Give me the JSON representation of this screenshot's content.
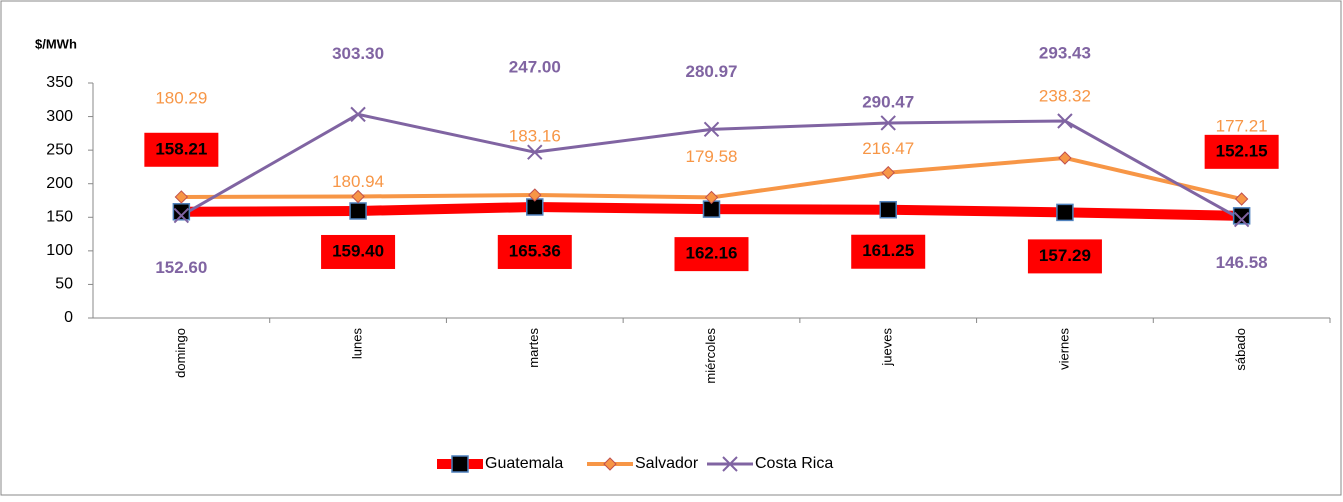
{
  "chart_data": {
    "type": "line",
    "y_label": "$/MWh",
    "categories": [
      "domingo",
      "lunes",
      "martes",
      "miércoles",
      "jueves",
      "viernes",
      "sábado"
    ],
    "series": [
      {
        "name": "Guatemala",
        "color": "#ff0000",
        "marker": "square",
        "values": [
          158.21,
          159.4,
          165.36,
          162.16,
          161.25,
          157.29,
          152.15
        ],
        "value_labels": [
          "158.21",
          "159.40",
          "165.36",
          "162.16",
          "161.25",
          "157.29",
          "152.15"
        ]
      },
      {
        "name": "Salvador",
        "color": "#f79646",
        "marker": "diamond",
        "values": [
          180.29,
          180.94,
          183.16,
          179.58,
          216.47,
          238.32,
          177.21
        ],
        "value_labels": [
          "180.29",
          "180.94",
          "183.16",
          "179.58",
          "216.47",
          "238.32",
          "177.21"
        ]
      },
      {
        "name": "Costa Rica",
        "color": "#8064a2",
        "marker": "x",
        "values": [
          152.6,
          303.3,
          247.0,
          280.97,
          290.47,
          293.43,
          146.58
        ],
        "value_labels": [
          "152.60",
          "303.30",
          "247.00",
          "280.97",
          "290.47",
          "293.43",
          "146.58"
        ]
      }
    ],
    "ylim": [
      0,
      350
    ],
    "yticks": [
      0,
      50,
      100,
      150,
      200,
      250,
      300,
      350
    ],
    "grid": false,
    "legend": "bottom"
  }
}
